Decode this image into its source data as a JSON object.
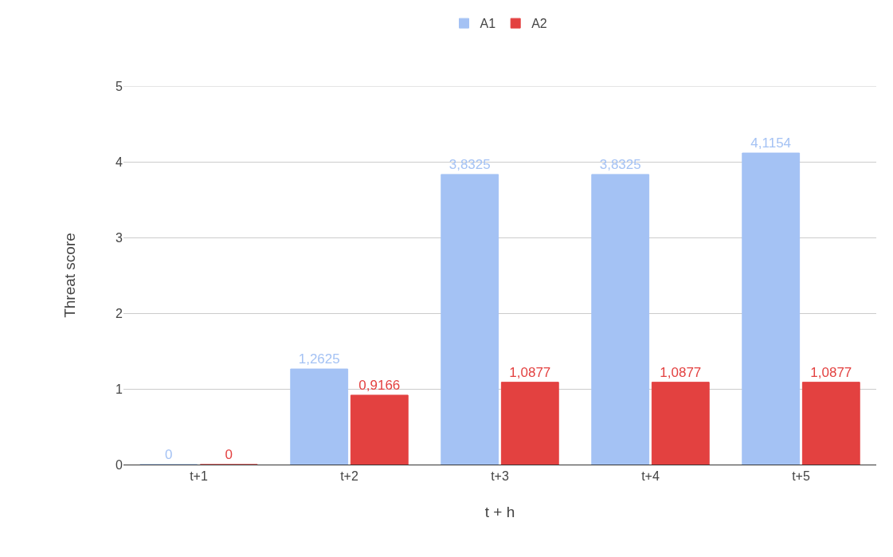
{
  "chart_data": {
    "type": "bar",
    "xlabel": "t + h",
    "ylabel": "Threat score",
    "categories": [
      "t+1",
      "t+2",
      "t+3",
      "t+4",
      "t+5"
    ],
    "series": [
      {
        "name": "A1",
        "color": "#a4c2f4",
        "values": [
          0,
          1.2625,
          3.8325,
          3.8325,
          4.1154
        ],
        "value_labels": [
          "0",
          "1,2625",
          "3,8325",
          "3,8325",
          "4,1154"
        ]
      },
      {
        "name": "A2",
        "color": "#e34140",
        "values": [
          0,
          0.9166,
          1.0877,
          1.0877,
          1.0877
        ],
        "value_labels": [
          "0",
          "0,9166",
          "1,0877",
          "1,0877",
          "1,0877"
        ]
      }
    ],
    "ylim": [
      0,
      5
    ],
    "yticks": [
      0,
      1,
      2,
      3,
      4,
      5
    ],
    "grid": "y",
    "legend": "top"
  }
}
